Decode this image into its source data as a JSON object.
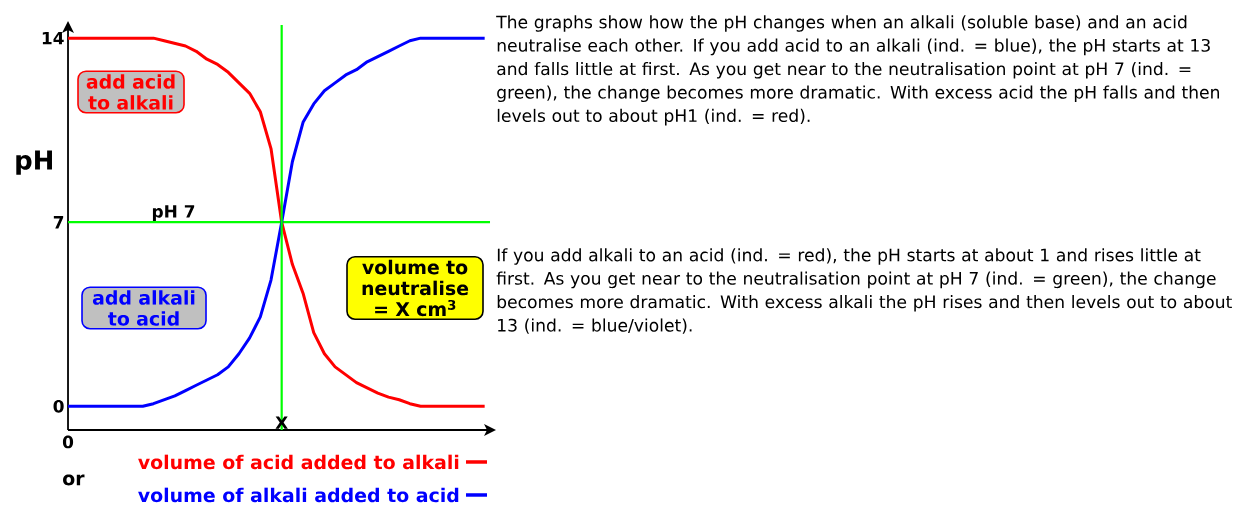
{
  "chart_data": {
    "type": "line",
    "ylabel": "pH",
    "categories": [
      "0",
      null,
      null,
      null,
      null,
      null,
      null,
      null,
      null,
      null,
      null,
      null,
      null,
      null,
      null,
      null,
      null,
      null,
      null,
      null,
      null,
      null,
      null,
      null,
      null,
      null,
      null,
      null,
      null,
      null,
      null,
      null,
      null,
      null,
      null,
      null,
      null,
      null,
      null,
      null
    ],
    "ylim": [
      -0.9,
      14.5
    ],
    "yticks": [
      0,
      7,
      14
    ],
    "series": [
      {
        "name": "volume of acid added to alkali",
        "color": "#ff0000",
        "values": [
          14,
          14,
          14,
          14,
          14,
          14,
          14,
          14,
          14,
          13.9,
          13.8,
          13.7,
          13.5,
          13.2,
          13.0,
          12.7,
          12.3,
          11.9,
          11.2,
          9.8,
          7,
          5.4,
          4.3,
          2.8,
          2.0,
          1.5,
          1.2,
          0.9,
          0.7,
          0.5,
          0.35,
          0.25,
          0.1,
          0,
          0,
          0,
          0,
          0,
          0,
          0
        ]
      },
      {
        "name": "volume of alkali added to acid",
        "color": "#0000ff",
        "values": [
          0,
          0,
          0,
          0,
          0,
          0,
          0,
          0,
          0.1,
          0.25,
          0.4,
          0.6,
          0.8,
          1.0,
          1.2,
          1.5,
          2.0,
          2.6,
          3.4,
          4.8,
          7,
          9.3,
          10.8,
          11.5,
          12.0,
          12.3,
          12.6,
          12.8,
          13.1,
          13.3,
          13.5,
          13.7,
          13.9,
          14,
          14,
          14,
          14,
          14,
          14,
          14
        ]
      }
    ],
    "ref_lines": [
      {
        "axis": "y",
        "value": 7,
        "label": "pH 7",
        "color": "#00ff00"
      }
    ],
    "legend": "bottom",
    "grid": false,
    "marker": "none",
    "line_style": "solid",
    "annotations": [
      "X",
      "add acid to alkali",
      "add alkali to acid",
      "volume to neutralise = X cm$^{3}$",
      "or",
      "The graphs show how the pH changes when an alkali (soluble base) and an acid neutralise each other. If you add acid to an alkali (ind. = blue), the pH starts at 13 and falls little at first. As you get near to the neutralisation point at pH 7 (ind. = green), the change becomes more dramatic. With excess acid the pH falls and then levels out to about pH1 (ind. = red).",
      "If you add alkali to an acid (ind. = red), the pH starts at about 1 and rises little at first. As you get near to the neutralisation point at pH 7 (ind. = green), the change becomes more dramatic. With excess alkali the pH rises and then levels out to about 13 (ind. = blue/violet)."
    ]
  }
}
